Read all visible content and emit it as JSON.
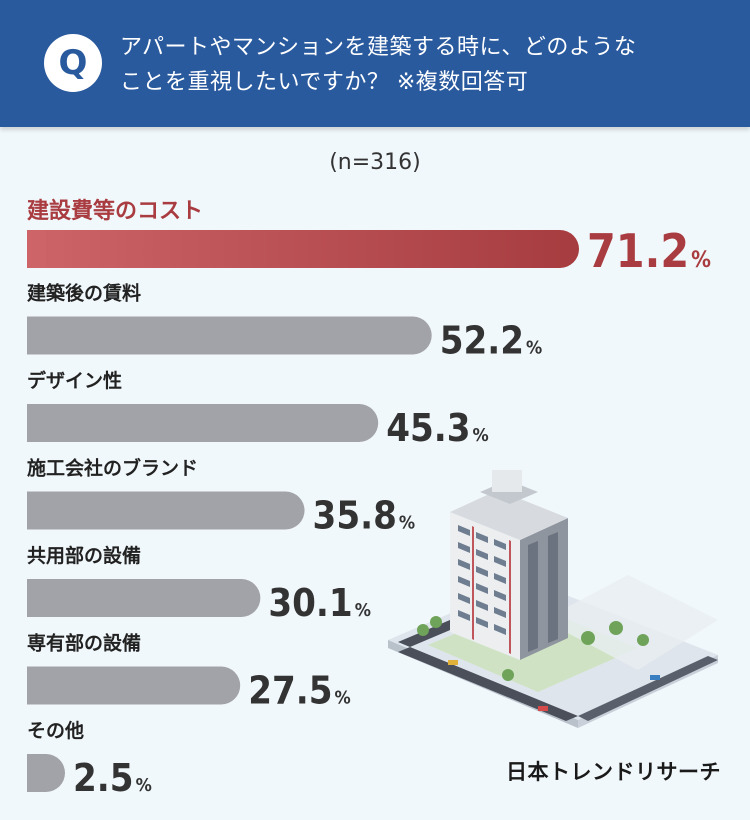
{
  "question": {
    "badge": "Q",
    "line1": "アパートやマンションを建築する時に、どのような",
    "line2": "ことを重視したいですか？ ※複数回答可"
  },
  "sample_size": "(n=316)",
  "brand": "日本トレンドリサーチ",
  "colors": {
    "header": "#2a5a9e",
    "highlight_start": "#cc6468",
    "highlight_end": "#a63c3f",
    "highlight_text": "#a93c40",
    "bar": "#a2a3a8",
    "value_text": "#333333"
  },
  "chart_data": {
    "type": "bar",
    "orientation": "horizontal",
    "unit": "%",
    "categories": [
      "建設費等のコスト",
      "建築後の賃料",
      "デザイン性",
      "施工会社のブランド",
      "共用部の設備",
      "専有部の設備",
      "その他"
    ],
    "values": [
      71.2,
      52.2,
      45.3,
      35.8,
      30.1,
      27.5,
      2.5
    ],
    "value_labels": [
      "71.2",
      "52.2",
      "45.3",
      "35.8",
      "30.1",
      "27.5",
      "2.5"
    ],
    "highlight_index": 0,
    "title": "",
    "xlabel": "",
    "ylabel": "",
    "xlim": [
      0,
      71.2
    ],
    "grid": false,
    "legend": "none"
  }
}
